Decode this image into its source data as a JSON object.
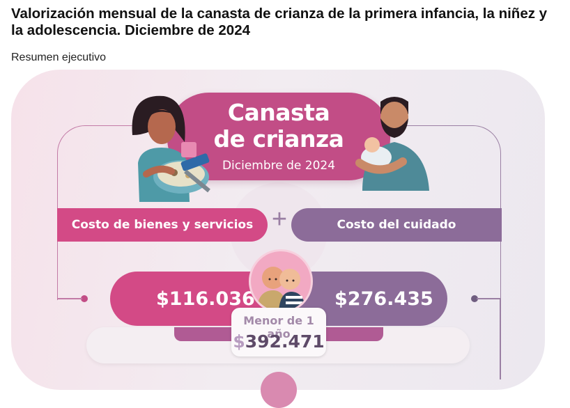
{
  "header": {
    "title": "Valorización mensual de la canasta de crianza de la primera infancia, la niñez y la adolescencia. Diciembre de 2024",
    "subtitle": "Resumen ejecutivo"
  },
  "infographic": {
    "badge_line1": "Canasta",
    "badge_line2": "de crianza",
    "badge_date": "Diciembre de 2024",
    "left_bar": "Costo de bienes y servicios",
    "plus": "+",
    "right_bar": "Costo del cuidado",
    "left_value": "$116.036",
    "right_value": "$276.435",
    "age_label": "Menor de 1 año",
    "total_dollar": "$",
    "total_number": "392.471"
  },
  "colors": {
    "pink": "#d34a86",
    "purple": "#8c6c99",
    "badge": "#c24d86"
  }
}
